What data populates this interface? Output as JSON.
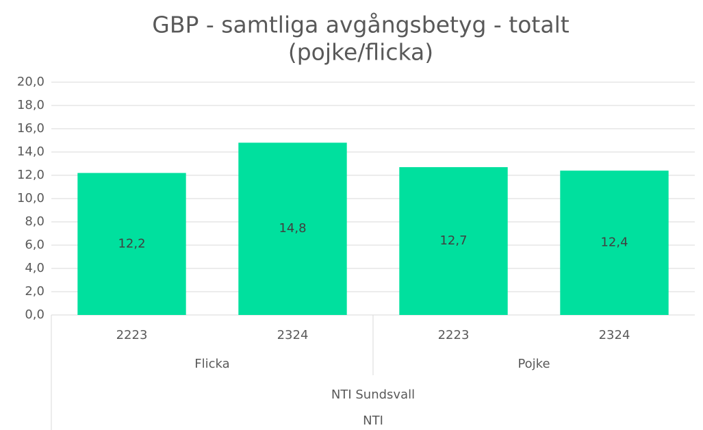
{
  "chart_data": {
    "type": "bar",
    "title": [
      "GBP - samtliga avgångsbetyg - totalt",
      "(pojke/flicka)"
    ],
    "categories": [
      "2223",
      "2324",
      "2223",
      "2324"
    ],
    "category_levels": [
      [
        "Flicka",
        "Pojke"
      ],
      [
        "NTI Sundsvall"
      ],
      [
        "NTI"
      ]
    ],
    "values": [
      12.2,
      14.8,
      12.7,
      12.4
    ],
    "value_labels": [
      "12,2",
      "14,8",
      "12,7",
      "12,4"
    ],
    "color": "#00e09e",
    "ylim": [
      0,
      20
    ],
    "yticks": [
      {
        "value": 0,
        "label": "0,0"
      },
      {
        "value": 2,
        "label": "2,0"
      },
      {
        "value": 4,
        "label": "4,0"
      },
      {
        "value": 6,
        "label": "6,0"
      },
      {
        "value": 8,
        "label": "8,0"
      },
      {
        "value": 10,
        "label": "10,0"
      },
      {
        "value": 12,
        "label": "12,0"
      },
      {
        "value": 14,
        "label": "14,0"
      },
      {
        "value": 16,
        "label": "16,0"
      },
      {
        "value": 18,
        "label": "18,0"
      },
      {
        "value": 20,
        "label": "20,0"
      }
    ],
    "grid": true
  }
}
